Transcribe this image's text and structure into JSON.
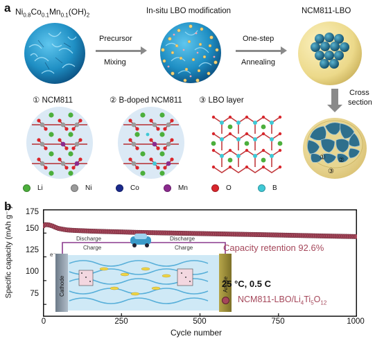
{
  "panel_a": {
    "label": "a",
    "precursor_formula": {
      "p1": "Ni",
      "s1": "0.8",
      "p2": "Co",
      "s2": "0.1",
      "p3": "Mn",
      "s3": "0.1",
      "p4": "(OH)",
      "s4": "2"
    },
    "modification_title": "In-situ LBO modification",
    "product_title": "NCM811-LBO",
    "step1_top": "Precursor",
    "step1_bottom": "Mixing",
    "step2_top": "One-step",
    "step2_bottom": "Annealing",
    "step3_top": "Cross",
    "step3_bottom": "section",
    "structures": [
      {
        "num": "①",
        "name": "NCM811"
      },
      {
        "num": "②",
        "name": "B-doped NCM811"
      },
      {
        "num": "③",
        "name": "LBO layer"
      }
    ],
    "cross_section_marks": [
      "①",
      "②",
      "③"
    ],
    "legend": [
      {
        "symbol": "Li",
        "color": "#4caf3c"
      },
      {
        "symbol": "Ni",
        "color": "#9a9a9a"
      },
      {
        "symbol": "Co",
        "color": "#1a2a8c"
      },
      {
        "symbol": "Mn",
        "color": "#8b2a8e"
      },
      {
        "symbol": "O",
        "color": "#d9262c"
      },
      {
        "symbol": "B",
        "color": "#3fc9d6"
      }
    ]
  },
  "panel_b": {
    "label": "b",
    "retention_text": "Capacity retention 92.6%",
    "condition_text": "25 °C, 0.5 C",
    "inset": {
      "discharge_left": "Discharge",
      "charge_left": "Charge",
      "discharge_right": "Discharge",
      "charge_right": "Charge",
      "cathode": "Cathode",
      "anode": "Anode",
      "electron": "e⁻"
    }
  },
  "chart_data": {
    "type": "scatter",
    "xlabel": "Cycle number",
    "ylabel": "Specific capacity (mAh g⁻¹)",
    "xlim": [
      0,
      1000
    ],
    "ylim": [
      62,
      175
    ],
    "xticks": [
      0,
      250,
      500,
      750,
      1000
    ],
    "yticks": [
      75,
      100,
      125,
      150,
      175
    ],
    "series": [
      {
        "name": "NCM811-LBO/Li4Ti5O12",
        "color": "#a5475a",
        "x": [
          1,
          5,
          10,
          20,
          30,
          40,
          50,
          60,
          70,
          80,
          100,
          150,
          200,
          250,
          300,
          400,
          500,
          600,
          700,
          800,
          900,
          1000
        ],
        "y": [
          157.5,
          158.8,
          158.9,
          158.5,
          157.5,
          156.0,
          154.8,
          154.2,
          153.6,
          153.2,
          152.8,
          152.1,
          151.6,
          151.2,
          150.7,
          150.1,
          149.5,
          148.9,
          148.3,
          147.6,
          146.9,
          146.3
        ]
      }
    ],
    "legend_position": "bottom-right"
  }
}
